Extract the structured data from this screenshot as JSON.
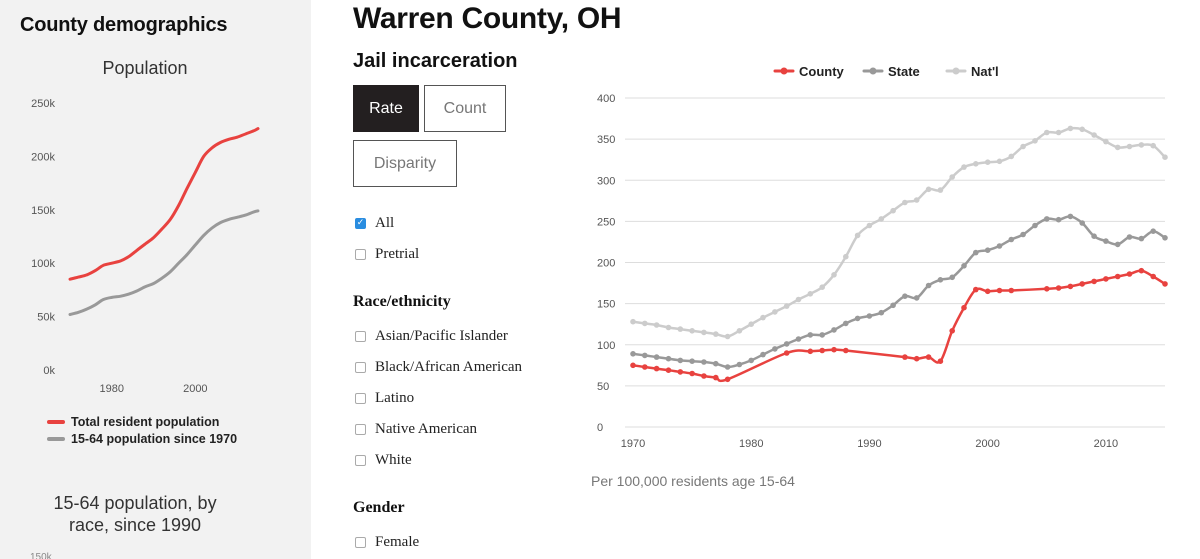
{
  "sidebar": {
    "title": "County demographics",
    "population_subtitle": "Population",
    "legend": [
      {
        "label": "Total resident population",
        "color": "#e8423f"
      },
      {
        "label": "15-64 population since 1970",
        "color": "#999999"
      }
    ],
    "race_subtitle_line1": "15-64 population, by",
    "race_subtitle_line2": "race, since 1990",
    "cut_label": "150k"
  },
  "main": {
    "county_title": "Warren County, OH",
    "section_title": "Jail incarceration",
    "buttons": {
      "rate": "Rate",
      "count": "Count",
      "disparity": "Disparity"
    },
    "checks": {
      "all": "All",
      "pretrial": "Pretrial"
    },
    "race_label": "Race/ethnicity",
    "race_options": [
      "Asian/Pacific Islander",
      "Black/African American",
      "Latino",
      "Native American",
      "White"
    ],
    "gender_label": "Gender",
    "gender_options": [
      "Female"
    ],
    "chart_note": "Per 100,000 residents age 15-64"
  },
  "chart_data": [
    {
      "type": "line",
      "title": "Population",
      "xlabel": "",
      "ylabel": "",
      "xlim": [
        1970,
        2015
      ],
      "ylim": [
        0,
        250000
      ],
      "x_ticks": [
        1980,
        2000
      ],
      "x_tick_labels": [
        "1980",
        "2000"
      ],
      "y_ticks": [
        0,
        50000,
        100000,
        150000,
        200000,
        250000
      ],
      "y_tick_labels": [
        "0k",
        "50k",
        "100k",
        "150k",
        "200k",
        "250k"
      ],
      "grid": false,
      "legend_position": "bottom",
      "series": [
        {
          "name": "Total resident population",
          "color": "#e8423f",
          "x": [
            1970,
            1972,
            1974,
            1976,
            1978,
            1980,
            1982,
            1984,
            1986,
            1988,
            1990,
            1992,
            1994,
            1996,
            1998,
            2000,
            2002,
            2004,
            2006,
            2008,
            2010,
            2012,
            2014,
            2015
          ],
          "y": [
            85000,
            87000,
            89000,
            93000,
            98000,
            100000,
            102000,
            106000,
            112000,
            118000,
            124000,
            132000,
            141000,
            154000,
            170000,
            185000,
            200000,
            208000,
            213000,
            216000,
            218000,
            221000,
            224000,
            226000
          ]
        },
        {
          "name": "15-64 population since 1970",
          "color": "#999999",
          "x": [
            1970,
            1972,
            1974,
            1976,
            1978,
            1980,
            1982,
            1984,
            1986,
            1988,
            1990,
            1992,
            1994,
            1996,
            1998,
            2000,
            2002,
            2004,
            2006,
            2008,
            2010,
            2012,
            2014,
            2015
          ],
          "y": [
            52000,
            54000,
            57000,
            61000,
            66000,
            68000,
            69000,
            71000,
            74000,
            78000,
            81000,
            86000,
            92000,
            100000,
            108000,
            117000,
            126000,
            133000,
            138000,
            141000,
            143000,
            145000,
            148000,
            149000
          ]
        }
      ]
    },
    {
      "type": "line",
      "title": "Jail incarceration",
      "xlabel": "",
      "ylabel": "Per 100,000 residents age 15-64",
      "xlim": [
        1970,
        2015
      ],
      "ylim": [
        0,
        400
      ],
      "x_ticks": [
        1970,
        1980,
        1990,
        2000,
        2010
      ],
      "y_ticks": [
        0,
        50,
        100,
        150,
        200,
        250,
        300,
        350,
        400
      ],
      "grid": true,
      "legend_position": "top",
      "legend": [
        "County",
        "State",
        "Nat'l"
      ],
      "series": [
        {
          "name": "County",
          "color": "#e8423f",
          "x": [
            1970,
            1971,
            1972,
            1973,
            1974,
            1975,
            1976,
            1977,
            1978,
            1983,
            1985,
            1986,
            1987,
            1988,
            1993,
            1994,
            1995,
            1996,
            1997,
            1998,
            1999,
            2000,
            2001,
            2002,
            2005,
            2006,
            2007,
            2008,
            2009,
            2010,
            2011,
            2012,
            2013,
            2014,
            2015
          ],
          "y": [
            75,
            73,
            71,
            69,
            67,
            65,
            62,
            60,
            58,
            90,
            92,
            93,
            94,
            93,
            85,
            83,
            85,
            80,
            117,
            145,
            167,
            165,
            166,
            166,
            168,
            169,
            171,
            174,
            177,
            180,
            183,
            186,
            190,
            183,
            174
          ]
        },
        {
          "name": "State",
          "color": "#999999",
          "x": [
            1970,
            1971,
            1972,
            1973,
            1974,
            1975,
            1976,
            1977,
            1978,
            1979,
            1980,
            1981,
            1982,
            1983,
            1984,
            1985,
            1986,
            1987,
            1988,
            1989,
            1990,
            1991,
            1992,
            1993,
            1994,
            1995,
            1996,
            1997,
            1998,
            1999,
            2000,
            2001,
            2002,
            2003,
            2004,
            2005,
            2006,
            2007,
            2008,
            2009,
            2010,
            2011,
            2012,
            2013,
            2014,
            2015
          ],
          "y": [
            89,
            87,
            85,
            83,
            81,
            80,
            79,
            77,
            73,
            76,
            81,
            88,
            95,
            101,
            107,
            112,
            112,
            118,
            126,
            132,
            135,
            139,
            148,
            159,
            157,
            172,
            179,
            182,
            196,
            212,
            215,
            220,
            228,
            234,
            245,
            253,
            252,
            256,
            248,
            232,
            226,
            222,
            231,
            229,
            238,
            230
          ]
        },
        {
          "name": "Nat'l",
          "color": "#cccccc",
          "x": [
            1970,
            1971,
            1972,
            1973,
            1974,
            1975,
            1976,
            1977,
            1978,
            1979,
            1980,
            1981,
            1982,
            1983,
            1984,
            1985,
            1986,
            1987,
            1988,
            1989,
            1990,
            1991,
            1992,
            1993,
            1994,
            1995,
            1996,
            1997,
            1998,
            1999,
            2000,
            2001,
            2002,
            2003,
            2004,
            2005,
            2006,
            2007,
            2008,
            2009,
            2010,
            2011,
            2012,
            2013,
            2014,
            2015
          ],
          "y": [
            128,
            126,
            124,
            121,
            119,
            117,
            115,
            113,
            110,
            117,
            125,
            133,
            140,
            147,
            155,
            162,
            170,
            185,
            207,
            233,
            245,
            253,
            263,
            273,
            276,
            289,
            288,
            304,
            316,
            320,
            322,
            323,
            329,
            341,
            348,
            358,
            358,
            363,
            362,
            355,
            347,
            340,
            341,
            343,
            342,
            328
          ]
        }
      ]
    }
  ]
}
